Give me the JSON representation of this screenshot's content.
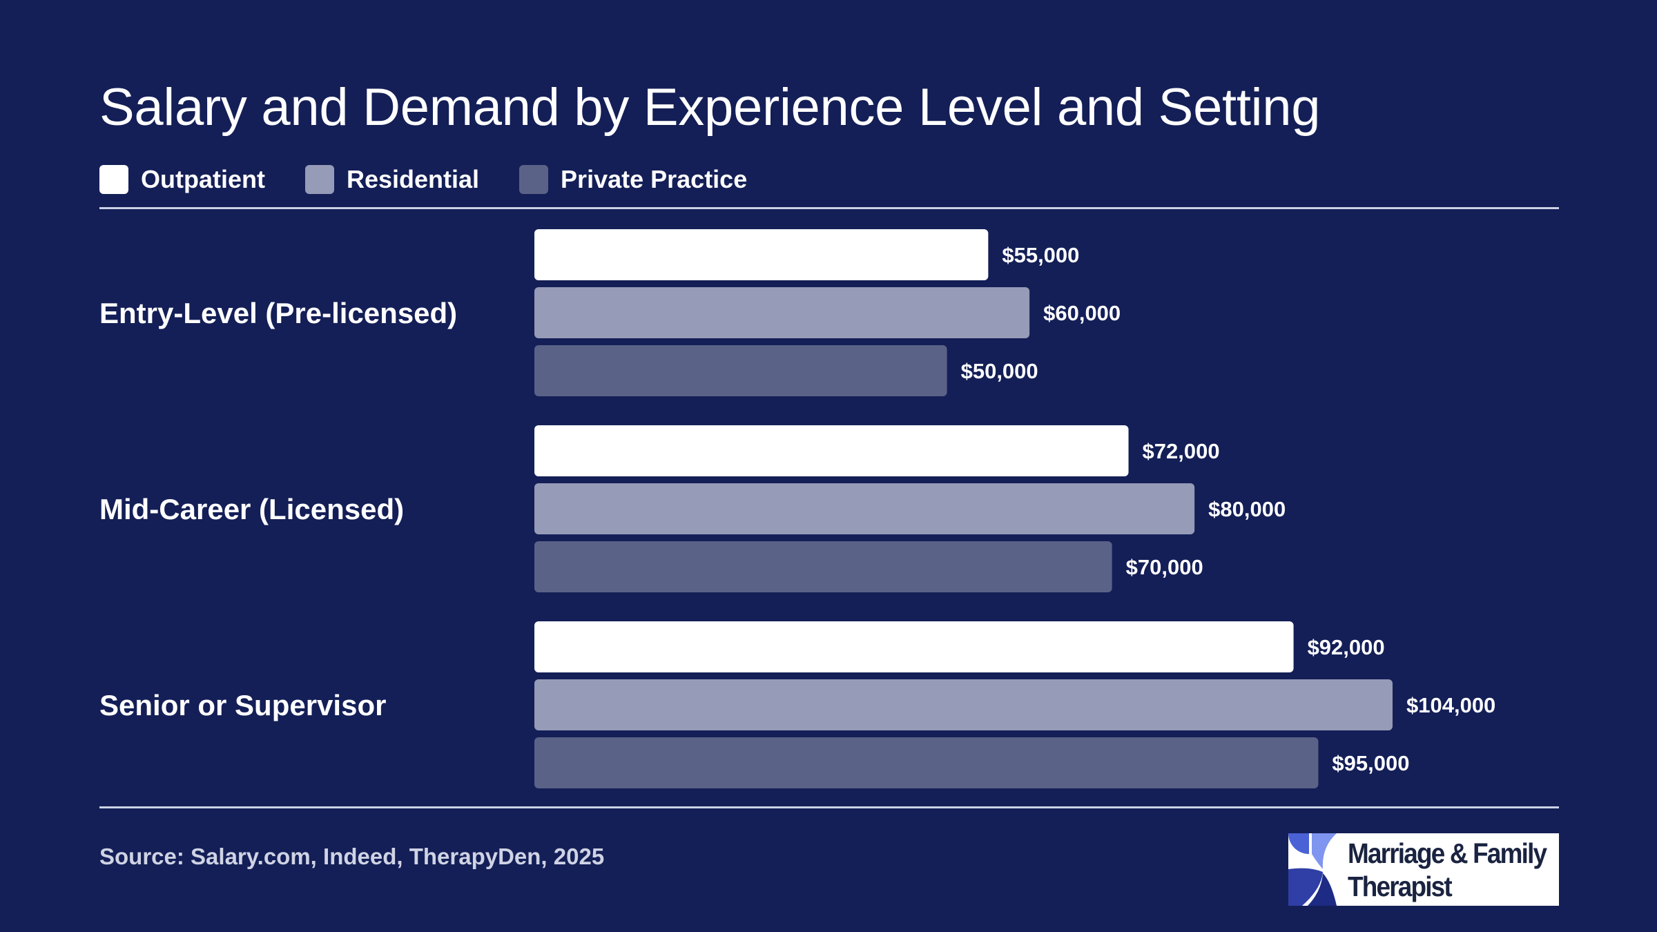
{
  "chart_data": {
    "type": "bar",
    "orientation": "horizontal",
    "title": "Salary and Demand by Experience Level and Setting",
    "categories": [
      "Entry-Level (Pre-licensed)",
      "Mid-Career (Licensed)",
      "Senior or Supervisor"
    ],
    "series": [
      {
        "name": "Outpatient",
        "color": "#ffffff",
        "values": [
          55000,
          72000,
          92000
        ],
        "labels": [
          "$55,000",
          "$72,000",
          "$92,000"
        ]
      },
      {
        "name": "Residential",
        "color": "#969bb7",
        "values": [
          60000,
          80000,
          104000
        ],
        "labels": [
          "$60,000",
          "$80,000",
          "$104,000"
        ]
      },
      {
        "name": "Private Practice",
        "color": "#5b6287",
        "values": [
          50000,
          70000,
          95000
        ],
        "labels": [
          "$50,000",
          "$70,000",
          "$95,000"
        ]
      }
    ],
    "xlim": [
      0,
      104000
    ],
    "grid": false,
    "legend": "top-left"
  },
  "source": "Source: Salary.com, Indeed, TherapyDen, 2025",
  "logo": {
    "line1": "Marriage & Family",
    "line2": "Therapist"
  },
  "colors": {
    "background": "#141f57",
    "rule": "#cdd2e6"
  }
}
